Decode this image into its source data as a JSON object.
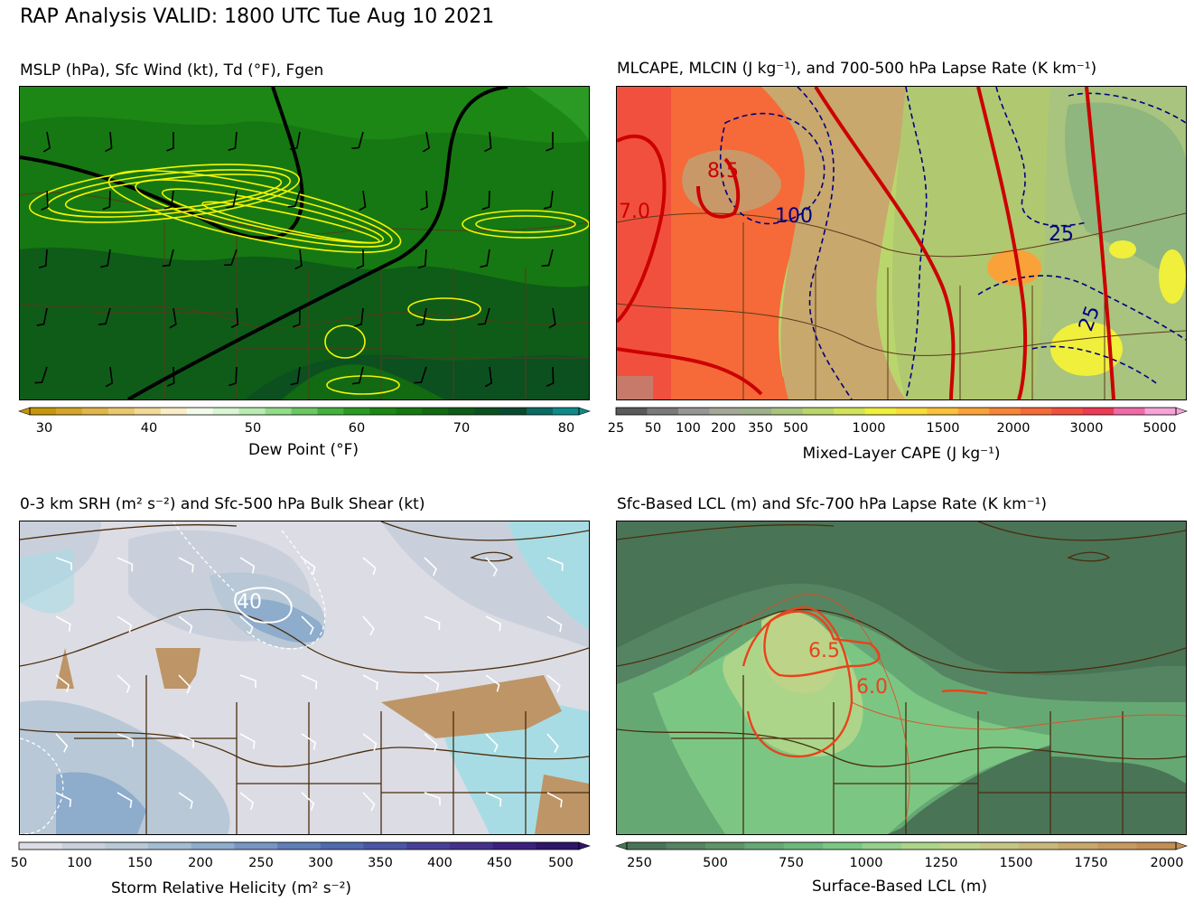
{
  "title": "RAP Analysis VALID: 1800 UTC Tue Aug 10 2021",
  "panels": [
    {
      "id": "mslp",
      "title": "MSLP (hPa), Sfc Wind (kt), Td (°F), Fgen",
      "colorbar": {
        "label": "Dew Point (°F)",
        "ticks": [
          "30",
          "40",
          "50",
          "60",
          "70",
          "80"
        ],
        "colors": [
          "#c8960a",
          "#d4a528",
          "#dfb64a",
          "#e9c86f",
          "#f1da98",
          "#f8edc6",
          "#f2fbe9",
          "#d9f5d3",
          "#b9ecb0",
          "#93dc8a",
          "#6bc763",
          "#45b03e",
          "#2a9a24",
          "#1c8714",
          "#167812",
          "#126a12",
          "#0e5c18",
          "#0c5020",
          "#0a4a30",
          "#0b6a62",
          "#0f8a8a"
        ]
      },
      "labels": []
    },
    {
      "id": "cape",
      "title": "MLCAPE, MLCIN (J kg⁻¹), and 700-500 hPa Lapse Rate (K km⁻¹)",
      "colorbar": {
        "label": "Mixed-Layer CAPE (J kg⁻¹)",
        "ticks": [
          "25",
          "50",
          "100",
          "200",
          "350",
          "500",
          "1000",
          "1500",
          "2000",
          "3000",
          "5000"
        ],
        "colors": [
          "#5a5a5a",
          "#7a7a7a",
          "#969696",
          "#a5a896",
          "#9eb08a",
          "#a8c47e",
          "#b9d66c",
          "#d2e35a",
          "#f0ef3c",
          "#f7dc3a",
          "#f9c23a",
          "#f9a23a",
          "#f78537",
          "#f56a38",
          "#f2503f",
          "#ee3a55",
          "#f06aa8",
          "#f7a3d8"
        ]
      },
      "labels": [
        "8.5",
        "100",
        "25",
        "25",
        "7.0"
      ]
    },
    {
      "id": "srh",
      "title": "0-3 km SRH (m² s⁻²) and Sfc-500 hPa Bulk Shear (kt)",
      "colorbar": {
        "label": "Storm Relative Helicity (m² s⁻²)",
        "ticks": [
          "50",
          "100",
          "150",
          "200",
          "250",
          "300",
          "350",
          "400",
          "450",
          "500"
        ],
        "colors": [
          "#dcdce4",
          "#c9d0dc",
          "#b8c8d6",
          "#a3bcd2",
          "#8eaccc",
          "#7796c2",
          "#5e7fb8",
          "#4f6aae",
          "#4a56a4",
          "#483f98",
          "#44308c",
          "#3c1f7e",
          "#301468"
        ]
      },
      "labels": [
        "40"
      ]
    },
    {
      "id": "lcl",
      "title": "Sfc-Based LCL (m) and Sfc-700 hPa Lapse Rate (K km⁻¹)",
      "colorbar": {
        "label": "Surface-Based LCL (m)",
        "ticks": [
          "250",
          "500",
          "750",
          "1000",
          "1250",
          "1500",
          "1750",
          "2000"
        ],
        "colors": [
          "#4a7456",
          "#558462",
          "#5d9468",
          "#66a874",
          "#6fb77c",
          "#7cc684",
          "#94d08c",
          "#acd58a",
          "#bcd388",
          "#c4c682",
          "#c8b878",
          "#c8a86c",
          "#c69a5e",
          "#c28e54"
        ]
      },
      "labels": [
        "6.5",
        "6.0"
      ]
    }
  ]
}
